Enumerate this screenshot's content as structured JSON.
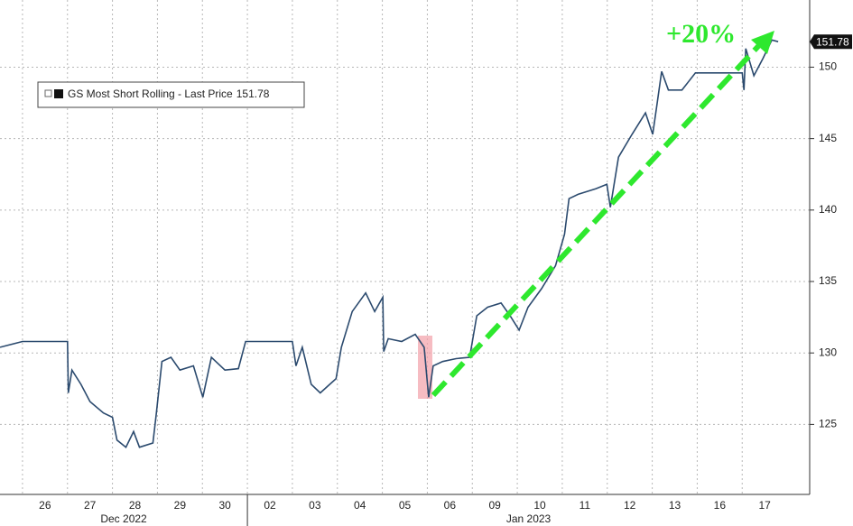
{
  "chart_data": {
    "type": "line",
    "legend": "GS Most Short Rolling - Last Price",
    "last_price": 151.78,
    "annotation": "+20%",
    "x": [
      -1,
      -0.5,
      0.5,
      0.52,
      0.6,
      0.8,
      1.0,
      1.3,
      1.5,
      1.6,
      1.8,
      1.97,
      2.1,
      2.4,
      2.47,
      2.6,
      2.8,
      3.0,
      3.3,
      3.51,
      3.7,
      4.0,
      4.3,
      4.46,
      5.5,
      5.58,
      5.72,
      5.92,
      6.12,
      6.33,
      6.47,
      6.59,
      6.83,
      7.13,
      7.33,
      7.51,
      7.53,
      7.63,
      7.93,
      8.23,
      8.43,
      8.53,
      8.63,
      8.84,
      9.14,
      9.44,
      9.6,
      9.84,
      10.14,
      10.34,
      10.54,
      10.74,
      11.04,
      11.35,
      11.55,
      11.65,
      11.85,
      12.25,
      12.49,
      12.57,
      12.75,
      13.05,
      13.35,
      13.51,
      13.61,
      13.71,
      13.86,
      14.16,
      14.46,
      15.5,
      15.54,
      15.58,
      15.76,
      15.96,
      16.16,
      16.3
    ],
    "series": [
      {
        "name": "GS Most Short Rolling",
        "color": "#2b4a6e",
        "values": [
          130.4,
          130.8,
          130.8,
          127.2,
          128.8,
          127.8,
          126.6,
          125.8,
          125.5,
          123.9,
          123.4,
          124.5,
          123.4,
          123.7,
          125.6,
          129.4,
          129.7,
          128.8,
          129.1,
          126.9,
          129.7,
          128.8,
          128.9,
          130.8,
          130.8,
          129.1,
          130.4,
          127.8,
          127.2,
          127.8,
          128.2,
          130.4,
          132.9,
          134.2,
          132.9,
          133.9,
          130.1,
          131.0,
          130.8,
          131.3,
          130.4,
          126.9,
          129.1,
          129.4,
          129.6,
          129.7,
          132.6,
          133.2,
          133.5,
          132.6,
          131.6,
          133.2,
          134.5,
          136.1,
          138.3,
          140.8,
          141.1,
          141.5,
          141.8,
          140.2,
          143.7,
          145.3,
          146.8,
          145.3,
          147.5,
          149.7,
          148.4,
          148.4,
          149.6,
          149.6,
          148.4,
          151.3,
          149.4,
          150.6,
          151.9,
          151.78
        ]
      }
    ],
    "xlim": [
      -1,
      17
    ],
    "xticks": [
      {
        "value": 0,
        "label": "26"
      },
      {
        "value": 1,
        "label": "27"
      },
      {
        "value": 2,
        "label": "28"
      },
      {
        "value": 3,
        "label": "29"
      },
      {
        "value": 4,
        "label": "30"
      },
      {
        "value": 5,
        "label": "02"
      },
      {
        "value": 6,
        "label": "03"
      },
      {
        "value": 7,
        "label": "04"
      },
      {
        "value": 8,
        "label": "05"
      },
      {
        "value": 9,
        "label": "06"
      },
      {
        "value": 10,
        "label": "09"
      },
      {
        "value": 11,
        "label": "10"
      },
      {
        "value": 12,
        "label": "11"
      },
      {
        "value": 13,
        "label": "12"
      },
      {
        "value": 14,
        "label": "13"
      },
      {
        "value": 15,
        "label": "16"
      },
      {
        "value": 16,
        "label": "17"
      }
    ],
    "x_groups": [
      {
        "label": "Dec 2022",
        "first": 0,
        "last": 4
      },
      {
        "label": "Jan 2023",
        "first": 5,
        "last": 16
      }
    ],
    "ylim": [
      120.1,
      154.7
    ],
    "yticks": [
      125,
      130,
      135,
      140,
      145,
      150
    ],
    "grid": true
  }
}
